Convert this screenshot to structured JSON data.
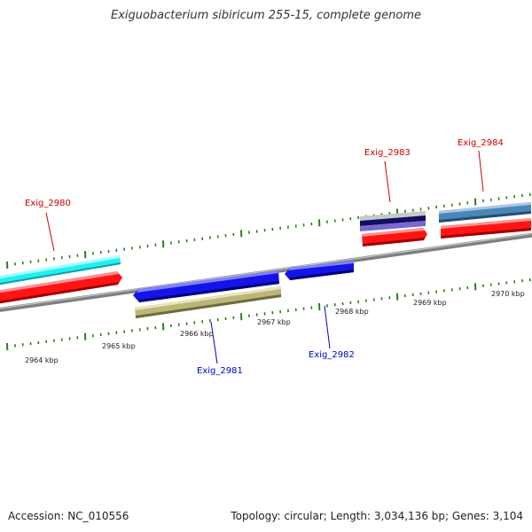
{
  "title": "Exiguobacterium sibiricum 255-15, complete genome",
  "footer": {
    "accession": "Accession: NC_010556",
    "summary": "Topology: circular; Length: 3,034,136 bp; Genes: 3,104"
  },
  "colors": {
    "backbone": "#888888",
    "tick": "#2e7d1e",
    "plus_label": "#cc0000",
    "minus_label": "#0000cc",
    "cds_red": "#ff1010",
    "cds_blue": "#1010e0",
    "cyan": "#20f0f0",
    "olive": "#b8b67a",
    "steelblue": "#4a86b8",
    "lavender": "#8070d0",
    "navy": "#101060",
    "silver": "#c0c0c0"
  },
  "axis_labels": [
    {
      "text": "2964 kbp",
      "kbp": 2964
    },
    {
      "text": "2965 kbp",
      "kbp": 2965
    },
    {
      "text": "2966 kbp",
      "kbp": 2966
    },
    {
      "text": "2967 kbp",
      "kbp": 2967
    },
    {
      "text": "2968 kbp",
      "kbp": 2968
    },
    {
      "text": "2969 kbp",
      "kbp": 2969
    },
    {
      "text": "2970 kbp",
      "kbp": 2970
    }
  ],
  "genes": [
    {
      "label": "Exig_2980",
      "strand": "+"
    },
    {
      "label": "Exig_2981",
      "strand": "-"
    },
    {
      "label": "Exig_2982",
      "strand": "-"
    },
    {
      "label": "Exig_2983",
      "strand": "+"
    },
    {
      "label": "Exig_2984",
      "strand": "+"
    }
  ]
}
